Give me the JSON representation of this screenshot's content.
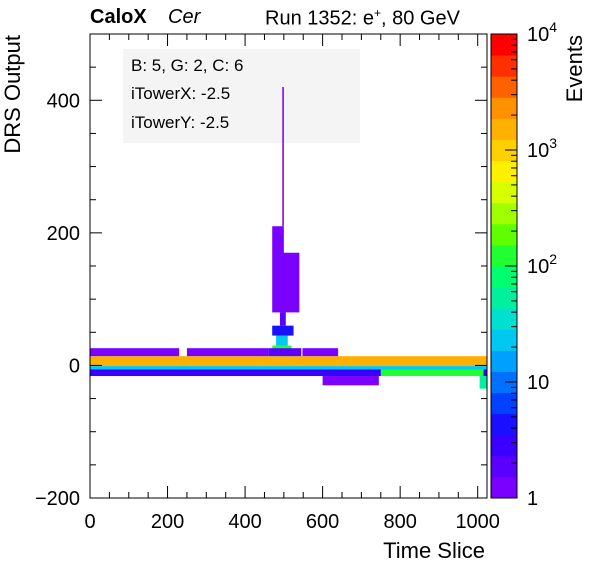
{
  "header": {
    "brand": "CaloX",
    "subtitle": "Cer",
    "run_prefix": "Run 1352: e",
    "run_superscript": "+",
    "run_suffix": ", 80 GeV"
  },
  "info_box": {
    "line1": "B: 5, G: 2, C: 6",
    "line2": "iTowerX: -2.5",
    "line3": "iTowerY: -2.5"
  },
  "chart_data": {
    "type": "heatmap",
    "xlabel": "Time Slice",
    "ylabel": "DRS Output",
    "zlabel": "Events",
    "xlim": [
      0,
      1024
    ],
    "ylim": [
      -200,
      500
    ],
    "zscale": "log",
    "zlim": [
      1,
      10000
    ],
    "x_ticks": [
      "0",
      "200",
      "400",
      "600",
      "800",
      "1000"
    ],
    "y_ticks": [
      "−200",
      "0",
      "200",
      "400"
    ],
    "z_ticks": [
      {
        "value": 1,
        "base": "1",
        "exp": ""
      },
      {
        "value": 10,
        "base": "10",
        "exp": ""
      },
      {
        "value": 100,
        "base": "10",
        "exp": "2"
      },
      {
        "value": 1000,
        "base": "10",
        "exp": "3"
      },
      {
        "value": 10000,
        "base": "10",
        "exp": "4"
      }
    ],
    "palette": [
      "#7a00ff",
      "#5a00ff",
      "#3a00ff",
      "#1a10ff",
      "#0040ff",
      "#0070ff",
      "#00a0ff",
      "#00c8f0",
      "#00e0d0",
      "#00f0a0",
      "#00ff70",
      "#20ff30",
      "#60ff00",
      "#a0ff00",
      "#d8ff00",
      "#fff000",
      "#ffd000",
      "#ffb000",
      "#ff9000",
      "#ff6000",
      "#ff3000",
      "#ff0000"
    ],
    "cells": [
      {
        "x0": 0,
        "x1": 1024,
        "y0": -1,
        "y1": 14,
        "z": 1500
      },
      {
        "x0": 0,
        "x1": 1024,
        "y0": -6,
        "y1": -1,
        "z": 25
      },
      {
        "x0": 0,
        "x1": 1024,
        "y0": -16,
        "y1": -6,
        "z": 3
      },
      {
        "x0": 750,
        "x1": 1015,
        "y0": -16,
        "y1": -6,
        "z": 120
      },
      {
        "x0": 470,
        "x1": 520,
        "y0": 14,
        "y1": 30,
        "z": 100
      },
      {
        "x0": 480,
        "x1": 510,
        "y0": 30,
        "y1": 45,
        "z": 20
      },
      {
        "x0": 470,
        "x1": 525,
        "y0": 45,
        "y1": 60,
        "z": 5
      },
      {
        "x0": 490,
        "x1": 505,
        "y0": 60,
        "y1": 80,
        "z": 2
      },
      {
        "x0": 460,
        "x1": 545,
        "y0": 14,
        "y1": 26,
        "z": 2
      },
      {
        "x0": 0,
        "x1": 230,
        "y0": 14,
        "y1": 26,
        "z": 1
      },
      {
        "x0": 250,
        "x1": 460,
        "y0": 14,
        "y1": 26,
        "z": 1
      },
      {
        "x0": 548,
        "x1": 640,
        "y0": 14,
        "y1": 26,
        "z": 1
      },
      {
        "x0": 1005,
        "x1": 1024,
        "y0": -35,
        "y1": -16,
        "z": 60
      },
      {
        "x0": 600,
        "x1": 745,
        "y0": -30,
        "y1": -16,
        "z": 1
      },
      {
        "x0": 470,
        "x1": 500,
        "y0": 80,
        "y1": 210,
        "z": 1
      },
      {
        "x0": 495,
        "x1": 540,
        "y0": 80,
        "y1": 170,
        "z": 1
      },
      {
        "x0": 496,
        "x1": 500,
        "y0": 210,
        "y1": 420,
        "z": 1
      }
    ]
  }
}
